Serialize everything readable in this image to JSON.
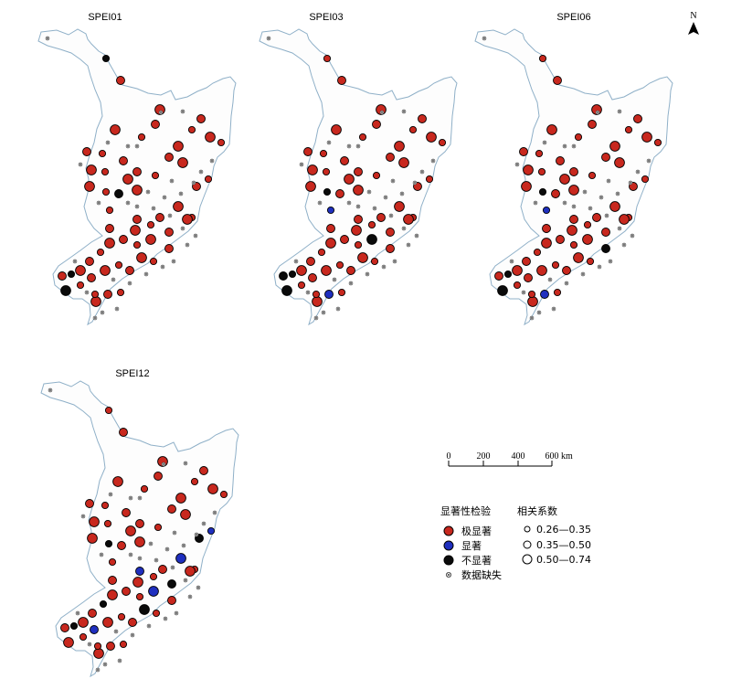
{
  "panels": [
    {
      "title": "SPEI01",
      "counts": {
        "very": 52,
        "sig": 0,
        "none": 6
      }
    },
    {
      "title": "SPEI03",
      "counts": {
        "very": 50,
        "sig": 2,
        "none": 5
      }
    },
    {
      "title": "SPEI06",
      "counts": {
        "very": 52,
        "sig": 2,
        "none": 4
      }
    },
    {
      "title": "SPEI12",
      "counts": {
        "very": 48,
        "sig": 5,
        "none": 6
      }
    }
  ],
  "north_label": "N",
  "scalebar": {
    "ticks": [
      "0",
      "200",
      "400",
      "600"
    ],
    "unit": "km"
  },
  "legend": {
    "sig_title": "显著性检验",
    "sig_items": [
      {
        "label": "极显著",
        "color": "#c8281e"
      },
      {
        "label": "显著",
        "color": "#1f2fbf"
      },
      {
        "label": "不显著",
        "color": "#0a0a0a"
      },
      {
        "label": "数据缺失",
        "color": "#ffffff"
      }
    ],
    "corr_title": "相关系数",
    "corr_items": [
      "0.26—0.35",
      "0.35—0.50",
      "0.50—0.74"
    ]
  },
  "colors": {
    "very": "#c8281e",
    "sig": "#1f2fbf",
    "none": "#0a0a0a",
    "boundary": "#8fb0c8",
    "region_fill": "#fdfdfd"
  }
}
